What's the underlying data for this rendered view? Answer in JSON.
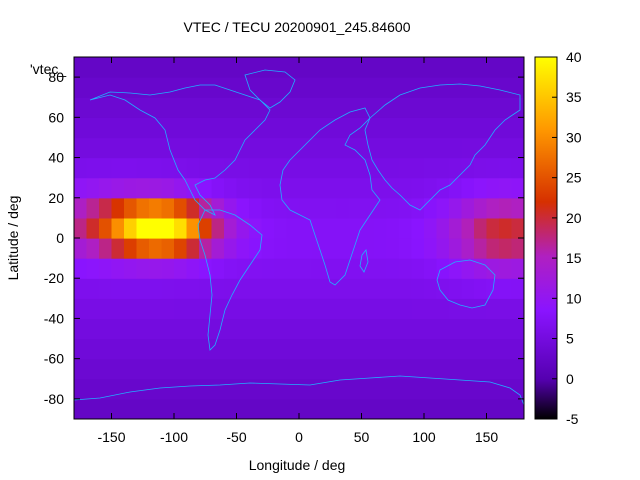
{
  "chart_data": {
    "type": "heatmap",
    "title": "VTEC / TECU 20200901_245.84600",
    "xlabel": "Longitude / deg",
    "ylabel": "Latitude / deg",
    "series_label": "'vtec_",
    "xlim": [
      -180,
      180
    ],
    "ylim": [
      -90,
      90
    ],
    "xticks": [
      -150,
      -100,
      -50,
      0,
      50,
      100,
      150
    ],
    "yticks": [
      -80,
      -60,
      -40,
      -20,
      0,
      20,
      40,
      60,
      80
    ],
    "colorbar": {
      "range": [
        -5,
        40
      ],
      "ticks": [
        -5,
        0,
        5,
        10,
        15,
        20,
        25,
        30,
        35,
        40
      ],
      "colormap": [
        "#000000",
        "#5500b0",
        "#8a14ff",
        "#b020c0",
        "#d63000",
        "#ff9800",
        "#ffff00"
      ]
    },
    "grid_step": {
      "lon": 10,
      "lat": 10
    },
    "anomalies": [
      {
        "lon": -110,
        "lat": 5,
        "sigma_lon": 28,
        "sigma_lat": 9,
        "amp": 28
      },
      {
        "lon": -145,
        "lat": 8,
        "sigma_lon": 45,
        "sigma_lat": 12,
        "amp": 10
      },
      {
        "lon": 165,
        "lat": 3,
        "sigma_lon": 30,
        "sigma_lat": 13,
        "amp": 13
      }
    ],
    "background_tec": 8
  },
  "colors": {
    "coastline": "#20b0ff"
  }
}
